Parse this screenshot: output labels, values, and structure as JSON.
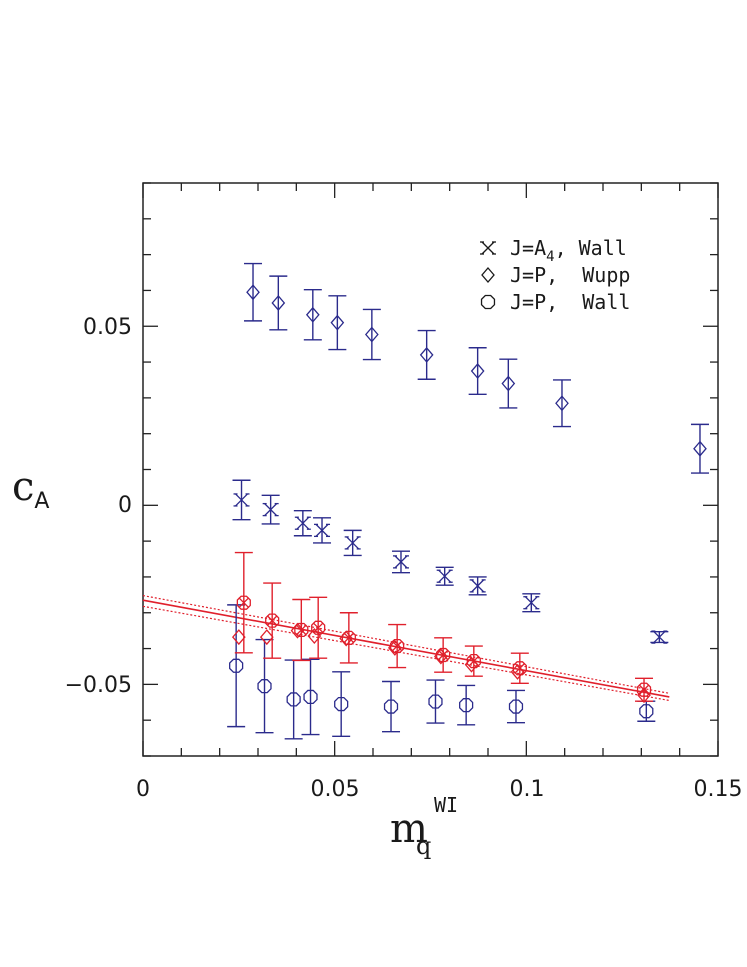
{
  "chart_data": {
    "type": "scatter",
    "title": "",
    "xlabel": "m",
    "xlabel_sub": "q",
    "xlabel_sup": "WI",
    "ylabel": "c",
    "ylabel_sub": "A",
    "xlim": [
      0,
      0.15
    ],
    "ylim": [
      -0.07,
      0.09
    ],
    "x_ticks": [
      0,
      0.05,
      0.1,
      0.15
    ],
    "x_tick_labels": [
      "0",
      "0.05",
      "0.1",
      "0.15"
    ],
    "y_ticks": [
      -0.05,
      0,
      0.05
    ],
    "y_tick_labels": [
      "−0.05",
      "0",
      "0.05"
    ],
    "grid": false,
    "legend_position": "top-right",
    "series": [
      {
        "name": "J=A4, Wall",
        "legend_main": "J=A",
        "legend_sub": "4",
        "legend_rest": ", Wall",
        "marker": "cross",
        "color": "#2b2b8c",
        "points": [
          {
            "x": 0.0257,
            "y": 0.0015,
            "err": 0.0055
          },
          {
            "x": 0.0333,
            "y": -0.0012,
            "err": 0.004
          },
          {
            "x": 0.0417,
            "y": -0.005,
            "err": 0.0035
          },
          {
            "x": 0.0467,
            "y": -0.007,
            "err": 0.0035
          },
          {
            "x": 0.0547,
            "y": -0.0105,
            "err": 0.0035
          },
          {
            "x": 0.0673,
            "y": -0.0158,
            "err": 0.003
          },
          {
            "x": 0.0787,
            "y": -0.0198,
            "err": 0.0025
          },
          {
            "x": 0.0873,
            "y": -0.0225,
            "err": 0.0025
          },
          {
            "x": 0.1013,
            "y": -0.0272,
            "err": 0.0025
          },
          {
            "x": 0.1347,
            "y": -0.0368,
            "err": 0.0015
          }
        ]
      },
      {
        "name": "J=P, Wupp",
        "legend_main": "J=P,",
        "legend_sub": "",
        "legend_rest": "  Wupp",
        "marker": "diamond",
        "color": "#2b2b8c",
        "points": [
          {
            "x": 0.0287,
            "y": 0.0595,
            "err": 0.008
          },
          {
            "x": 0.0353,
            "y": 0.0565,
            "err": 0.0075
          },
          {
            "x": 0.0443,
            "y": 0.0532,
            "err": 0.007
          },
          {
            "x": 0.0507,
            "y": 0.051,
            "err": 0.0075
          },
          {
            "x": 0.0597,
            "y": 0.0477,
            "err": 0.007
          },
          {
            "x": 0.074,
            "y": 0.042,
            "err": 0.0068
          },
          {
            "x": 0.0873,
            "y": 0.0375,
            "err": 0.0065
          },
          {
            "x": 0.0953,
            "y": 0.034,
            "err": 0.0068
          },
          {
            "x": 0.1093,
            "y": 0.0285,
            "err": 0.0065
          },
          {
            "x": 0.1453,
            "y": 0.0158,
            "err": 0.0068
          }
        ]
      },
      {
        "name": "J=P, Wall",
        "legend_main": "J=P,",
        "legend_sub": "",
        "legend_rest": "  Wall",
        "marker": "octagon",
        "color": "#2b2b8c",
        "points": [
          {
            "x": 0.0243,
            "y": -0.0448,
            "err": 0.017
          },
          {
            "x": 0.0317,
            "y": -0.0505,
            "err": 0.013
          },
          {
            "x": 0.0393,
            "y": -0.0542,
            "err": 0.011
          },
          {
            "x": 0.0437,
            "y": -0.0535,
            "err": 0.0105
          },
          {
            "x": 0.0517,
            "y": -0.0555,
            "err": 0.009
          },
          {
            "x": 0.0647,
            "y": -0.0562,
            "err": 0.007
          },
          {
            "x": 0.0763,
            "y": -0.0548,
            "err": 0.006
          },
          {
            "x": 0.0843,
            "y": -0.0558,
            "err": 0.0055
          },
          {
            "x": 0.0973,
            "y": -0.0562,
            "err": 0.0045
          },
          {
            "x": 0.1313,
            "y": -0.0575,
            "err": 0.0028
          }
        ]
      },
      {
        "name": "",
        "marker": "octagon-cross",
        "color": "#e0202c",
        "points": [
          {
            "x": 0.0263,
            "y": -0.0272,
            "err": 0.014
          },
          {
            "x": 0.0337,
            "y": -0.0322,
            "err": 0.0105
          },
          {
            "x": 0.0413,
            "y": -0.0348,
            "err": 0.0085
          },
          {
            "x": 0.0457,
            "y": -0.0342,
            "err": 0.0085
          },
          {
            "x": 0.0537,
            "y": -0.037,
            "err": 0.007
          },
          {
            "x": 0.0663,
            "y": -0.0393,
            "err": 0.006
          },
          {
            "x": 0.0783,
            "y": -0.0418,
            "err": 0.0048
          },
          {
            "x": 0.0863,
            "y": -0.0435,
            "err": 0.0042
          },
          {
            "x": 0.0983,
            "y": -0.0455,
            "err": 0.0042
          },
          {
            "x": 0.1307,
            "y": -0.0515,
            "err": 0.0032
          }
        ]
      },
      {
        "name": "",
        "marker": "diamond",
        "color": "#e0202c",
        "points": [
          {
            "x": 0.025,
            "y": -0.0368,
            "err": 0.0
          },
          {
            "x": 0.0323,
            "y": -0.0368,
            "err": 0.0
          },
          {
            "x": 0.0403,
            "y": -0.035,
            "err": 0.0
          },
          {
            "x": 0.0447,
            "y": -0.0365,
            "err": 0.0
          },
          {
            "x": 0.053,
            "y": -0.0372,
            "err": 0.0
          },
          {
            "x": 0.0657,
            "y": -0.0398,
            "err": 0.0
          },
          {
            "x": 0.0777,
            "y": -0.0422,
            "err": 0.0
          },
          {
            "x": 0.0857,
            "y": -0.0445,
            "err": 0.0
          },
          {
            "x": 0.0977,
            "y": -0.0465,
            "err": 0.0
          },
          {
            "x": 0.1307,
            "y": -0.053,
            "err": 0.0
          }
        ]
      }
    ],
    "fit": {
      "color": "#e0202c",
      "x": [
        0,
        0.1373
      ],
      "center": [
        -0.0265,
        -0.0535
      ],
      "upper": [
        -0.0252,
        -0.0525
      ],
      "lower": [
        -0.0282,
        -0.0545
      ]
    }
  }
}
